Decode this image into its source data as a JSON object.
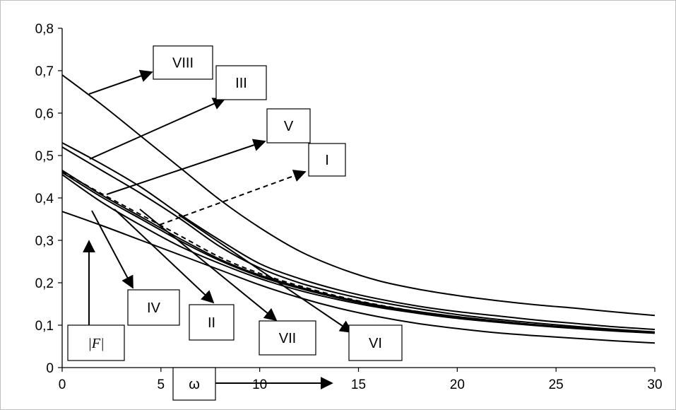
{
  "chart_data": {
    "type": "line",
    "xlim": [
      0,
      30
    ],
    "ylim": [
      0,
      0.8
    ],
    "x_ticks": [
      "0",
      "5",
      "10",
      "15",
      "20",
      "25",
      "30"
    ],
    "y_ticks": [
      "0",
      "0,1",
      "0,2",
      "0,3",
      "0,4",
      "0,5",
      "0,6",
      "0,7",
      "0,8"
    ],
    "grid": false,
    "x_axis_symbol": "ω",
    "y_axis_symbol": "|F|",
    "series": [
      {
        "name": "VIII",
        "style": "solid",
        "x": [
          0,
          2,
          4,
          6,
          8,
          10,
          12,
          14,
          16,
          18,
          20,
          22,
          24,
          26,
          28,
          30
        ],
        "y": [
          0.69,
          0.62,
          0.545,
          0.47,
          0.395,
          0.33,
          0.275,
          0.235,
          0.205,
          0.185,
          0.17,
          0.158,
          0.148,
          0.14,
          0.131,
          0.123
        ]
      },
      {
        "name": "III",
        "style": "solid",
        "x": [
          0,
          2,
          4,
          6,
          8,
          10,
          12,
          14,
          16,
          18,
          20,
          22,
          24,
          26,
          28,
          30
        ],
        "y": [
          0.53,
          0.48,
          0.425,
          0.36,
          0.3,
          0.245,
          0.21,
          0.183,
          0.162,
          0.145,
          0.132,
          0.122,
          0.112,
          0.104,
          0.096,
          0.09
        ]
      },
      {
        "name": "V",
        "style": "solid",
        "x": [
          0,
          2,
          4,
          6,
          8,
          10,
          12,
          14,
          16,
          18,
          20,
          22,
          24,
          26,
          28,
          30
        ],
        "y": [
          0.52,
          0.465,
          0.41,
          0.35,
          0.285,
          0.235,
          0.2,
          0.175,
          0.155,
          0.139,
          0.125,
          0.114,
          0.105,
          0.097,
          0.09,
          0.084
        ]
      },
      {
        "name": "I",
        "style": "dashed",
        "x": [
          0,
          2,
          4,
          6,
          8,
          10,
          12,
          14,
          16,
          18,
          20,
          22,
          24,
          26,
          28,
          30
        ],
        "y": [
          0.462,
          0.41,
          0.36,
          0.31,
          0.26,
          0.222,
          0.193,
          0.168,
          0.148,
          0.132,
          0.12,
          0.11,
          0.101,
          0.094,
          0.087,
          0.082
        ]
      },
      {
        "name": "II",
        "style": "solid",
        "x": [
          0,
          2,
          4,
          6,
          8,
          10,
          12,
          14,
          16,
          18,
          20,
          22,
          24,
          26,
          28,
          30
        ],
        "y": [
          0.465,
          0.407,
          0.355,
          0.303,
          0.255,
          0.218,
          0.19,
          0.166,
          0.147,
          0.132,
          0.12,
          0.11,
          0.101,
          0.094,
          0.088,
          0.083
        ]
      },
      {
        "name": "VI",
        "style": "solid",
        "x": [
          0,
          2,
          4,
          6,
          8,
          10,
          12,
          14,
          16,
          18,
          20,
          22,
          24,
          26,
          28,
          30
        ],
        "y": [
          0.46,
          0.402,
          0.35,
          0.298,
          0.252,
          0.215,
          0.187,
          0.164,
          0.145,
          0.131,
          0.119,
          0.109,
          0.1,
          0.093,
          0.087,
          0.082
        ]
      },
      {
        "name": "VII",
        "style": "solid",
        "x": [
          0,
          2,
          4,
          6,
          8,
          10,
          12,
          14,
          16,
          18,
          20,
          22,
          24,
          26,
          28,
          30
        ],
        "y": [
          0.455,
          0.39,
          0.335,
          0.285,
          0.245,
          0.21,
          0.182,
          0.16,
          0.142,
          0.128,
          0.116,
          0.107,
          0.099,
          0.092,
          0.086,
          0.081
        ]
      },
      {
        "name": "IV",
        "style": "solid",
        "x": [
          0,
          2,
          4,
          6,
          8,
          10,
          12,
          14,
          16,
          18,
          20,
          22,
          24,
          26,
          28,
          30
        ],
        "y": [
          0.368,
          0.335,
          0.3,
          0.265,
          0.23,
          0.195,
          0.165,
          0.14,
          0.12,
          0.104,
          0.092,
          0.082,
          0.075,
          0.069,
          0.063,
          0.058
        ]
      }
    ]
  }
}
